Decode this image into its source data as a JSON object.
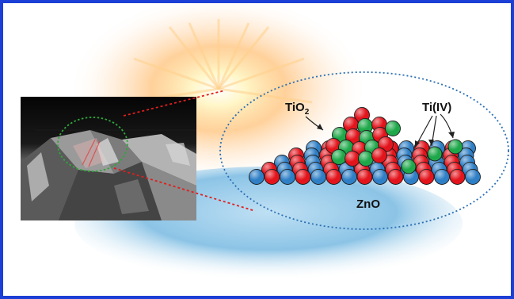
{
  "labels": {
    "tio2_main": "TiO",
    "tio2_sub": "2",
    "ti_iv": "Ti(IV)",
    "zno": "ZnO"
  },
  "colors": {
    "frame_border": "#1c3fd6",
    "zn_atom": "#2f7fc6",
    "o_atom": "#e3141c",
    "ti_atom": "#1fa84a",
    "zoom_ellipse": "#2b6fb3",
    "sem_marker": "#2ea83a",
    "zoom_lines": "#e01e1e"
  }
}
